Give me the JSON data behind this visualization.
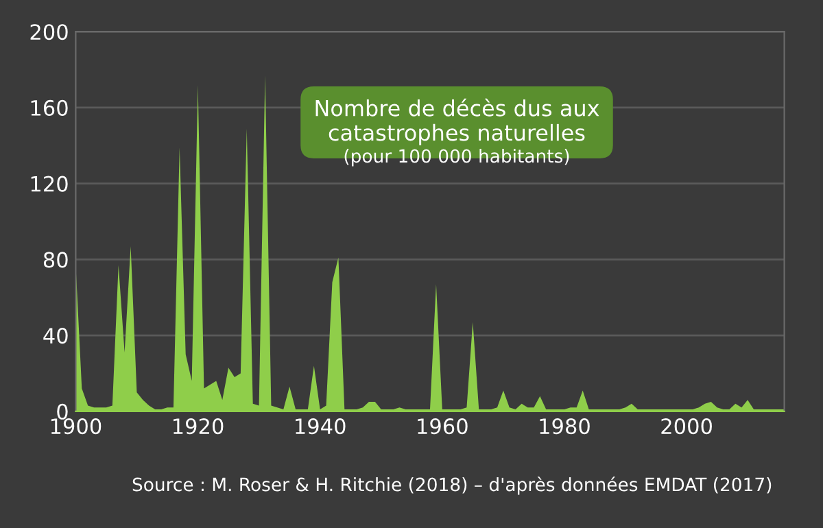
{
  "chart_data": {
    "type": "area",
    "title": "Nombre de décès dus aux catastrophes naturelles",
    "subtitle": "(pour 100 000 habitants)",
    "x": [
      1900,
      1901,
      1902,
      1903,
      1904,
      1905,
      1906,
      1907,
      1908,
      1909,
      1910,
      1911,
      1912,
      1913,
      1914,
      1915,
      1916,
      1917,
      1918,
      1919,
      1920,
      1921,
      1922,
      1923,
      1924,
      1925,
      1926,
      1927,
      1928,
      1929,
      1930,
      1931,
      1932,
      1933,
      1934,
      1935,
      1936,
      1937,
      1938,
      1939,
      1940,
      1941,
      1942,
      1943,
      1944,
      1945,
      1946,
      1947,
      1948,
      1949,
      1950,
      1951,
      1952,
      1953,
      1954,
      1955,
      1956,
      1957,
      1958,
      1959,
      1960,
      1961,
      1962,
      1963,
      1964,
      1965,
      1966,
      1967,
      1968,
      1969,
      1970,
      1971,
      1972,
      1973,
      1974,
      1975,
      1976,
      1977,
      1978,
      1979,
      1980,
      1981,
      1982,
      1983,
      1984,
      1985,
      1986,
      1987,
      1988,
      1989,
      1990,
      1991,
      1992,
      1993,
      1994,
      1995,
      1996,
      1997,
      1998,
      1999,
      2000,
      2001,
      2002,
      2003,
      2004,
      2005,
      2006,
      2007,
      2008,
      2009,
      2010,
      2011,
      2012,
      2013,
      2014,
      2015,
      2016
    ],
    "series": [
      {
        "color": "#8fce4a",
        "values": [
          77,
          12,
          3,
          2,
          2,
          2,
          3,
          77,
          31,
          87,
          10,
          6,
          3,
          1,
          1,
          2,
          2,
          139,
          30,
          16,
          172,
          12,
          14,
          16,
          6,
          23,
          18,
          20,
          149,
          4,
          3,
          177,
          3,
          2,
          1,
          13,
          1,
          1,
          1,
          24,
          1,
          3,
          68,
          81,
          1,
          1,
          1,
          2,
          5,
          5,
          1,
          1,
          1,
          2,
          1,
          1,
          1,
          1,
          1,
          67,
          1,
          1,
          1,
          1,
          2,
          47,
          1,
          1,
          1,
          2,
          11,
          2,
          1,
          4,
          2,
          2,
          8,
          1,
          1,
          1,
          1,
          2,
          2,
          11,
          1,
          1,
          1,
          1,
          1,
          1,
          2,
          4,
          1,
          1,
          1,
          1,
          1,
          1,
          1,
          1,
          1,
          1,
          2,
          4,
          5,
          2,
          1,
          1,
          4,
          2,
          6,
          1,
          1,
          1,
          1,
          1,
          1
        ]
      }
    ],
    "xlim": [
      1900,
      2016
    ],
    "xticks": [
      1900,
      1920,
      1940,
      1960,
      1980,
      2000
    ],
    "ylim": [
      0,
      200
    ],
    "yticks": [
      0,
      40,
      80,
      120,
      160,
      200
    ],
    "grid": "y",
    "annotations": [
      "Source : M. Roser & H. Ritchie (2018) – d'après données EMDAT (2017)"
    ]
  }
}
